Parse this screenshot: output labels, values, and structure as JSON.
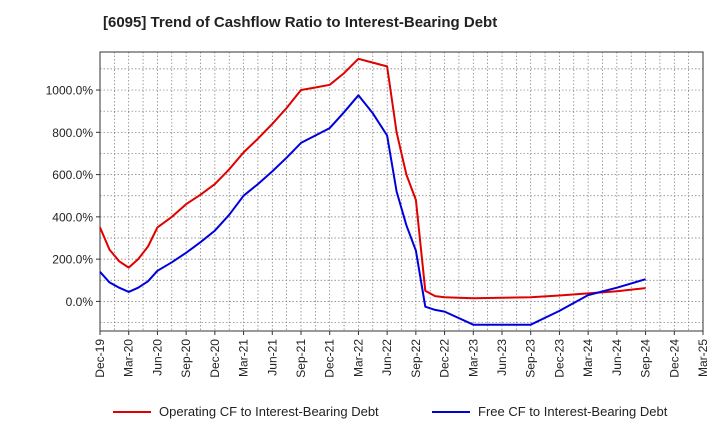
{
  "chart_data": {
    "type": "line",
    "title": "[6095]  Trend of Cashflow Ratio to Interest-Bearing Debt",
    "xlabel": "",
    "ylabel": "",
    "x_tick_labels": [
      "Dec-19",
      "Mar-20",
      "Jun-20",
      "Sep-20",
      "Dec-20",
      "Mar-21",
      "Jun-21",
      "Sep-21",
      "Dec-21",
      "Mar-22",
      "Jun-22",
      "Sep-22",
      "Dec-22",
      "Mar-23",
      "Jun-23",
      "Sep-23",
      "Dec-23",
      "Mar-24",
      "Jun-24",
      "Sep-24",
      "Dec-24",
      "Mar-25"
    ],
    "y_ticks": [
      0,
      200,
      400,
      600,
      800,
      1000
    ],
    "y_tick_labels": [
      "0.0%",
      "200.0%",
      "400.0%",
      "600.0%",
      "800.0%",
      "1000.0%"
    ],
    "ylim": [
      -140,
      1180
    ],
    "grid": true,
    "legend_position": "bottom",
    "series": [
      {
        "name": "Operating CF to Interest-Bearing Debt",
        "color": "#e00000",
        "points": [
          [
            0,
            350
          ],
          [
            0.33,
            245
          ],
          [
            0.67,
            190
          ],
          [
            1,
            160
          ],
          [
            1.33,
            200
          ],
          [
            1.67,
            260
          ],
          [
            2,
            350
          ],
          [
            2.5,
            400
          ],
          [
            3,
            460
          ],
          [
            3.5,
            505
          ],
          [
            4,
            555
          ],
          [
            4.5,
            625
          ],
          [
            5,
            705
          ],
          [
            5.5,
            770
          ],
          [
            6,
            840
          ],
          [
            6.5,
            915
          ],
          [
            7,
            1000
          ],
          [
            7.5,
            1012
          ],
          [
            8,
            1025
          ],
          [
            8.5,
            1080
          ],
          [
            9,
            1148
          ],
          [
            9.5,
            1130
          ],
          [
            10,
            1112
          ],
          [
            10.33,
            800
          ],
          [
            10.67,
            600
          ],
          [
            11,
            480
          ],
          [
            11.33,
            50
          ],
          [
            11.67,
            25
          ],
          [
            12,
            20
          ],
          [
            13,
            15
          ],
          [
            14,
            17
          ],
          [
            15,
            20
          ],
          [
            16,
            28
          ],
          [
            17,
            38
          ],
          [
            18,
            48
          ],
          [
            19,
            63
          ]
        ]
      },
      {
        "name": "Free CF to Interest-Bearing Debt",
        "color": "#0000dd",
        "points": [
          [
            0,
            140
          ],
          [
            0.33,
            90
          ],
          [
            0.67,
            65
          ],
          [
            1,
            45
          ],
          [
            1.33,
            65
          ],
          [
            1.67,
            95
          ],
          [
            2,
            145
          ],
          [
            2.5,
            185
          ],
          [
            3,
            230
          ],
          [
            3.5,
            280
          ],
          [
            4,
            335
          ],
          [
            4.5,
            410
          ],
          [
            5,
            500
          ],
          [
            5.5,
            555
          ],
          [
            6,
            615
          ],
          [
            6.5,
            680
          ],
          [
            7,
            750
          ],
          [
            7.5,
            785
          ],
          [
            8,
            820
          ],
          [
            8.5,
            895
          ],
          [
            9,
            975
          ],
          [
            9.5,
            890
          ],
          [
            10,
            785
          ],
          [
            10.33,
            520
          ],
          [
            10.67,
            360
          ],
          [
            11,
            240
          ],
          [
            11.33,
            -25
          ],
          [
            11.67,
            -40
          ],
          [
            12,
            -48
          ],
          [
            13,
            -110
          ],
          [
            14,
            -110
          ],
          [
            15,
            -110
          ],
          [
            16,
            -45
          ],
          [
            17,
            30
          ],
          [
            18,
            65
          ],
          [
            19,
            105
          ]
        ]
      }
    ]
  }
}
